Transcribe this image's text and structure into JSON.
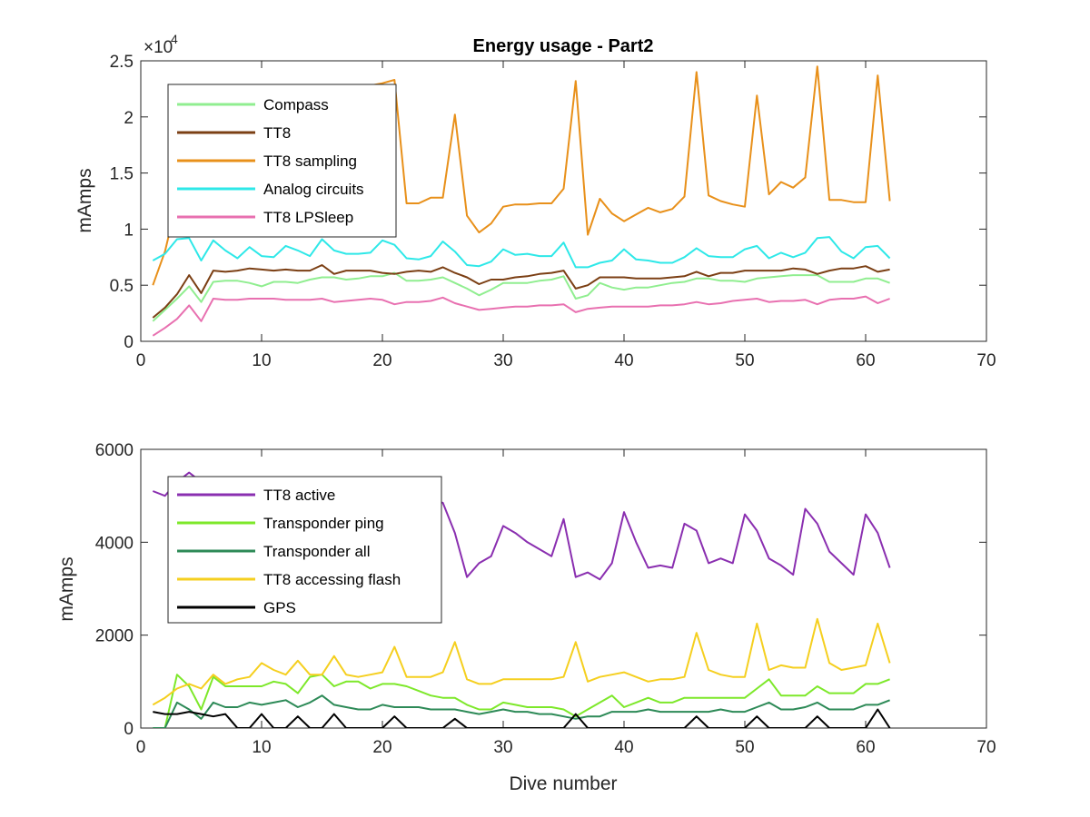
{
  "chart_data": [
    {
      "type": "line",
      "title": "Energy usage - Part2",
      "xlabel": "",
      "ylabel": "mAmps",
      "exponent_label": "×10",
      "exponent_power": "4",
      "xlim": [
        0,
        70
      ],
      "ylim": [
        0,
        25000
      ],
      "xticks": [
        0,
        10,
        20,
        30,
        40,
        50,
        60,
        70
      ],
      "yticks": [
        0,
        5000,
        10000,
        15000,
        20000,
        25000
      ],
      "ytick_labels": [
        "0",
        "0.5",
        "1",
        "1.5",
        "2",
        "2.5"
      ],
      "grid": false,
      "legend_position": "top-left",
      "x": [
        1,
        2,
        3,
        4,
        5,
        6,
        7,
        8,
        9,
        10,
        11,
        12,
        13,
        14,
        15,
        16,
        17,
        18,
        19,
        20,
        21,
        22,
        23,
        24,
        25,
        26,
        27,
        28,
        29,
        30,
        31,
        32,
        33,
        34,
        35,
        36,
        37,
        38,
        39,
        40,
        41,
        42,
        43,
        44,
        45,
        46,
        47,
        48,
        49,
        50,
        51,
        52,
        53,
        54,
        55,
        56,
        57,
        58,
        59,
        60,
        61,
        62
      ],
      "series": [
        {
          "name": "Compass",
          "color": "#90ee90",
          "values": [
            1800,
            2800,
            3800,
            4900,
            3500,
            5300,
            5400,
            5400,
            5200,
            4900,
            5300,
            5300,
            5200,
            5500,
            5700,
            5700,
            5500,
            5600,
            5800,
            5800,
            6100,
            5400,
            5400,
            5500,
            5700,
            5200,
            4700,
            4100,
            4600,
            5200,
            5200,
            5200,
            5400,
            5500,
            5800,
            3800,
            4100,
            5200,
            4800,
            4600,
            4800,
            4800,
            5000,
            5200,
            5300,
            5600,
            5600,
            5400,
            5400,
            5300,
            5600,
            5700,
            5800,
            5900,
            5900,
            5900,
            5300,
            5300,
            5300,
            5600,
            5600,
            5200
          ]
        },
        {
          "name": "TT8",
          "color": "#7b3f14",
          "values": [
            2100,
            3000,
            4200,
            5900,
            4300,
            6300,
            6200,
            6300,
            6500,
            6400,
            6300,
            6400,
            6300,
            6300,
            6800,
            6000,
            6300,
            6300,
            6300,
            6100,
            6000,
            6200,
            6300,
            6200,
            6600,
            6100,
            5700,
            5100,
            5500,
            5500,
            5700,
            5800,
            6000,
            6100,
            6300,
            4700,
            5000,
            5700,
            5700,
            5700,
            5600,
            5600,
            5600,
            5700,
            5800,
            6200,
            5800,
            6100,
            6100,
            6300,
            6300,
            6300,
            6300,
            6500,
            6400,
            6000,
            6300,
            6500,
            6500,
            6700,
            6200,
            6400
          ]
        },
        {
          "name": "TT8 sampling",
          "color": "#e8901a",
          "values": [
            5000,
            8000,
            12500,
            14500,
            9400,
            14000,
            15500,
            16500,
            18000,
            19000,
            19500,
            20000,
            20500,
            21000,
            21500,
            22000,
            22000,
            22500,
            22800,
            23000,
            23300,
            12300,
            12300,
            12800,
            12800,
            20200,
            11200,
            9700,
            10500,
            12000,
            12200,
            12200,
            12300,
            12300,
            13600,
            23200,
            9500,
            12700,
            11400,
            10700,
            11300,
            11900,
            11500,
            11800,
            12900,
            24000,
            13000,
            12500,
            12200,
            12000,
            21900,
            13100,
            14200,
            13700,
            14600,
            24500,
            12600,
            12600,
            12400,
            12400,
            23700,
            12500
          ]
        },
        {
          "name": "Analog circuits",
          "color": "#2ee8e8",
          "values": [
            7200,
            7800,
            9100,
            9200,
            7200,
            9000,
            8100,
            7400,
            8400,
            7600,
            7500,
            8500,
            8100,
            7600,
            9100,
            8100,
            7800,
            7800,
            7900,
            9000,
            8600,
            7400,
            7300,
            7600,
            8900,
            8000,
            6800,
            6700,
            7100,
            8200,
            7700,
            7800,
            7600,
            7600,
            8800,
            6600,
            6600,
            7000,
            7200,
            8200,
            7300,
            7200,
            7000,
            7000,
            7500,
            8300,
            7600,
            7500,
            7500,
            8200,
            8500,
            7400,
            7900,
            7500,
            7900,
            9200,
            9300,
            8000,
            7400,
            8400,
            8500,
            7400
          ]
        },
        {
          "name": "TT8 LPSleep",
          "color": "#e870b0",
          "values": [
            500,
            1200,
            2000,
            3200,
            1800,
            3800,
            3700,
            3700,
            3800,
            3800,
            3800,
            3700,
            3700,
            3700,
            3800,
            3500,
            3600,
            3700,
            3800,
            3700,
            3300,
            3500,
            3500,
            3600,
            3900,
            3400,
            3100,
            2800,
            2900,
            3000,
            3100,
            3100,
            3200,
            3200,
            3300,
            2600,
            2900,
            3000,
            3100,
            3100,
            3100,
            3100,
            3200,
            3200,
            3300,
            3500,
            3300,
            3400,
            3600,
            3700,
            3800,
            3500,
            3600,
            3600,
            3700,
            3300,
            3700,
            3800,
            3800,
            4000,
            3400,
            3800
          ]
        }
      ]
    },
    {
      "type": "line",
      "title": "",
      "xlabel": "Dive number",
      "ylabel": "mAmps",
      "xlim": [
        0,
        70
      ],
      "ylim": [
        0,
        6000
      ],
      "xticks": [
        0,
        10,
        20,
        30,
        40,
        50,
        60,
        70
      ],
      "yticks": [
        0,
        2000,
        4000,
        6000
      ],
      "ytick_labels": [
        "0",
        "2000",
        "4000",
        "6000"
      ],
      "grid": false,
      "legend_position": "top-left",
      "x": [
        1,
        2,
        3,
        4,
        5,
        6,
        7,
        8,
        9,
        10,
        11,
        12,
        13,
        14,
        15,
        16,
        17,
        18,
        19,
        20,
        21,
        22,
        23,
        24,
        25,
        26,
        27,
        28,
        29,
        30,
        31,
        32,
        33,
        34,
        35,
        36,
        37,
        38,
        39,
        40,
        41,
        42,
        43,
        44,
        45,
        46,
        47,
        48,
        49,
        50,
        51,
        52,
        53,
        54,
        55,
        56,
        57,
        58,
        59,
        60,
        61,
        62
      ],
      "series": [
        {
          "name": "TT8 active",
          "color": "#8a2fb0",
          "values": [
            5100,
            5000,
            5300,
            5500,
            5300,
            5100,
            5200,
            5100,
            5000,
            5000,
            4950,
            5000,
            5000,
            5000,
            5000,
            4950,
            4950,
            4900,
            4900,
            4900,
            4950,
            4950,
            4900,
            4900,
            4850,
            4200,
            3250,
            3550,
            3700,
            4350,
            4200,
            4000,
            3850,
            3700,
            4500,
            3250,
            3350,
            3200,
            3550,
            4650,
            4000,
            3450,
            3500,
            3450,
            4400,
            4250,
            3550,
            3650,
            3550,
            4600,
            4250,
            3650,
            3500,
            3300,
            4720,
            4400,
            3800,
            3550,
            3300,
            4600,
            4200,
            3450
          ]
        },
        {
          "name": "Transponder ping",
          "color": "#7de82a",
          "values": [
            0,
            0,
            1150,
            900,
            400,
            1100,
            900,
            900,
            900,
            900,
            1000,
            950,
            750,
            1100,
            1150,
            900,
            1000,
            1000,
            850,
            950,
            950,
            900,
            800,
            700,
            650,
            650,
            500,
            400,
            400,
            550,
            500,
            450,
            450,
            450,
            400,
            250,
            400,
            550,
            700,
            450,
            550,
            650,
            550,
            550,
            650,
            650,
            650,
            650,
            650,
            650,
            850,
            1050,
            700,
            700,
            700,
            900,
            750,
            750,
            750,
            950,
            950,
            1050
          ]
        },
        {
          "name": "Transponder all",
          "color": "#2d8a57",
          "values": [
            0,
            0,
            550,
            400,
            200,
            550,
            450,
            450,
            550,
            500,
            550,
            600,
            450,
            550,
            700,
            500,
            450,
            400,
            400,
            500,
            450,
            450,
            450,
            400,
            400,
            400,
            350,
            300,
            350,
            400,
            350,
            350,
            300,
            300,
            250,
            200,
            250,
            250,
            350,
            350,
            350,
            400,
            350,
            350,
            350,
            350,
            350,
            400,
            350,
            350,
            450,
            550,
            400,
            400,
            450,
            550,
            400,
            400,
            400,
            500,
            500,
            600
          ]
        },
        {
          "name": "TT8 accessing flash",
          "color": "#f5cf1f",
          "values": [
            500,
            650,
            850,
            950,
            850,
            1150,
            950,
            1050,
            1100,
            1400,
            1250,
            1150,
            1450,
            1150,
            1150,
            1550,
            1150,
            1100,
            1150,
            1200,
            1750,
            1100,
            1100,
            1100,
            1200,
            1850,
            1050,
            950,
            950,
            1050,
            1050,
            1050,
            1050,
            1050,
            1100,
            1850,
            1000,
            1100,
            1150,
            1200,
            1100,
            1000,
            1050,
            1050,
            1100,
            2050,
            1250,
            1150,
            1100,
            1100,
            2250,
            1250,
            1350,
            1300,
            1300,
            2350,
            1400,
            1250,
            1300,
            1350,
            2250,
            1400
          ]
        },
        {
          "name": "GPS",
          "color": "#000000",
          "values": [
            350,
            300,
            300,
            350,
            300,
            250,
            300,
            0,
            0,
            300,
            0,
            0,
            250,
            0,
            0,
            300,
            0,
            0,
            0,
            0,
            250,
            0,
            0,
            0,
            0,
            200,
            0,
            0,
            0,
            0,
            0,
            0,
            0,
            0,
            0,
            300,
            0,
            0,
            0,
            0,
            0,
            0,
            0,
            0,
            0,
            250,
            0,
            0,
            0,
            0,
            250,
            0,
            0,
            0,
            0,
            250,
            0,
            0,
            0,
            0,
            400,
            0
          ]
        }
      ]
    }
  ]
}
